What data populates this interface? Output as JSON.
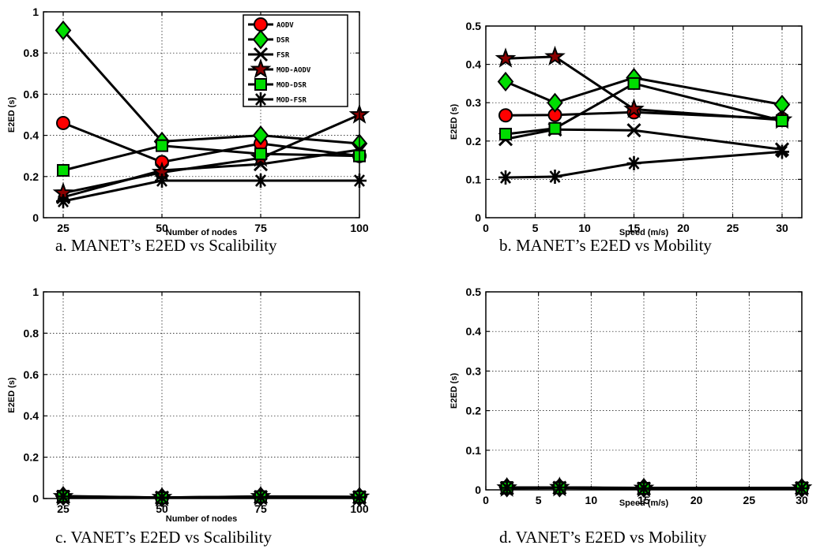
{
  "chart_data": [
    {
      "type": "line",
      "caption": "a.    MANET’s E2ED vs Scalibility",
      "xlabel": "Number of nodes",
      "ylabel": "E2ED (s)",
      "xlim": [
        20,
        100
      ],
      "ylim": [
        0,
        1
      ],
      "xticks": [
        25,
        50,
        75,
        100
      ],
      "yticks": [
        0,
        0.2,
        0.4,
        0.6,
        0.8,
        1
      ],
      "ytick_labels": [
        "0",
        "0.2",
        "0.4",
        "0.6",
        "0.8",
        "1"
      ],
      "grid": true,
      "legend_position": "top-right",
      "x": [
        25,
        50,
        75,
        100
      ],
      "series": [
        {
          "name": "AODV",
          "marker": "circle",
          "color": "#ff0000",
          "values": [
            0.46,
            0.27,
            0.36,
            0.3
          ]
        },
        {
          "name": "DSR",
          "marker": "diamond",
          "color": "#00dd00",
          "values": [
            0.91,
            0.37,
            0.4,
            0.36
          ]
        },
        {
          "name": "FSR",
          "marker": "x",
          "color": "#000000",
          "values": [
            0.1,
            0.23,
            0.26,
            0.33
          ]
        },
        {
          "name": "MOD-AODV",
          "marker": "star",
          "color": "#8b0000",
          "values": [
            0.12,
            0.22,
            0.29,
            0.5
          ]
        },
        {
          "name": "MOD-DSR",
          "marker": "square",
          "color": "#00dd00",
          "values": [
            0.23,
            0.35,
            0.31,
            0.3
          ]
        },
        {
          "name": "MOD-FSR",
          "marker": "asterisk",
          "color": "#000000",
          "values": [
            0.08,
            0.18,
            0.18,
            0.18
          ]
        }
      ]
    },
    {
      "type": "line",
      "caption": "b.    MANET’s E2ED vs Mobility",
      "xlabel": "Speed (m/s)",
      "ylabel": "E2ED (s)",
      "xlim": [
        0,
        32
      ],
      "ylim": [
        0,
        0.5
      ],
      "xticks": [
        0,
        5,
        10,
        15,
        20,
        25,
        30
      ],
      "yticks": [
        0,
        0.1,
        0.2,
        0.3,
        0.4,
        0.5
      ],
      "ytick_labels": [
        "0",
        "0.1",
        "0.2",
        "0.3",
        "0.4",
        "0.5"
      ],
      "grid": true,
      "x": [
        2,
        7,
        15,
        30
      ],
      "series": [
        {
          "name": "AODV",
          "marker": "circle",
          "color": "#ff0000",
          "values": [
            0.267,
            0.268,
            0.275,
            0.258
          ]
        },
        {
          "name": "DSR",
          "marker": "diamond",
          "color": "#00dd00",
          "values": [
            0.355,
            0.3,
            0.365,
            0.295
          ]
        },
        {
          "name": "FSR",
          "marker": "x",
          "color": "#000000",
          "values": [
            0.205,
            0.23,
            0.228,
            0.178
          ]
        },
        {
          "name": "MOD-AODV",
          "marker": "star",
          "color": "#8b0000",
          "values": [
            0.415,
            0.42,
            0.283,
            0.255
          ]
        },
        {
          "name": "MOD-DSR",
          "marker": "square",
          "color": "#00dd00",
          "values": [
            0.218,
            0.233,
            0.35,
            0.253
          ]
        },
        {
          "name": "MOD-FSR",
          "marker": "asterisk",
          "color": "#000000",
          "values": [
            0.105,
            0.107,
            0.142,
            0.172
          ]
        }
      ]
    },
    {
      "type": "line",
      "caption": "c.    VANET’s E2ED vs Scalibility",
      "xlabel": "Number of nodes",
      "ylabel": "E2ED (s)",
      "xlim": [
        20,
        100
      ],
      "ylim": [
        0,
        1
      ],
      "xticks": [
        25,
        50,
        75,
        100
      ],
      "yticks": [
        0,
        0.2,
        0.4,
        0.6,
        0.8,
        1
      ],
      "ytick_labels": [
        "0",
        "0.2",
        "0.4",
        "0.6",
        "0.8",
        "1"
      ],
      "grid": true,
      "x": [
        25,
        50,
        75,
        100
      ],
      "series": [
        {
          "name": "AODV",
          "marker": "circle",
          "color": "#ff0000",
          "values": [
            0.01,
            0.004,
            0.008,
            0.007
          ]
        },
        {
          "name": "DSR",
          "marker": "diamond",
          "color": "#00dd00",
          "values": [
            0.012,
            0.005,
            0.01,
            0.008
          ]
        },
        {
          "name": "FSR",
          "marker": "x",
          "color": "#000000",
          "values": [
            0.008,
            0.004,
            0.007,
            0.006
          ]
        },
        {
          "name": "MOD-AODV",
          "marker": "star",
          "color": "#8b0000",
          "values": [
            0.009,
            0.005,
            0.009,
            0.007
          ]
        },
        {
          "name": "MOD-DSR",
          "marker": "square",
          "color": "#00dd00",
          "values": [
            0.011,
            0.004,
            0.009,
            0.008
          ]
        },
        {
          "name": "MOD-FSR",
          "marker": "asterisk",
          "color": "#000000",
          "values": [
            0.01,
            0.005,
            0.008,
            0.006
          ]
        }
      ]
    },
    {
      "type": "line",
      "caption": "d.    VANET’s E2ED vs Mobility",
      "xlabel": "Speed (m/s)",
      "ylabel": "E2ED (s)",
      "xlim": [
        0,
        30
      ],
      "ylim": [
        0,
        0.5
      ],
      "xticks": [
        0,
        5,
        10,
        15,
        20,
        25,
        30
      ],
      "yticks": [
        0,
        0.1,
        0.2,
        0.3,
        0.4,
        0.5
      ],
      "ytick_labels": [
        "0",
        "0.1",
        "0.2",
        "0.3",
        "0.4",
        "0.5"
      ],
      "grid": true,
      "x": [
        2,
        7,
        15,
        30
      ],
      "series": [
        {
          "name": "AODV",
          "marker": "circle",
          "color": "#ff0000",
          "values": [
            0.005,
            0.006,
            0.004,
            0.005
          ]
        },
        {
          "name": "DSR",
          "marker": "diamond",
          "color": "#00dd00",
          "values": [
            0.006,
            0.006,
            0.005,
            0.005
          ]
        },
        {
          "name": "FSR",
          "marker": "x",
          "color": "#000000",
          "values": [
            0.004,
            0.005,
            0.003,
            0.004
          ]
        },
        {
          "name": "MOD-AODV",
          "marker": "star",
          "color": "#8b0000",
          "values": [
            0.005,
            0.006,
            0.004,
            0.005
          ]
        },
        {
          "name": "MOD-DSR",
          "marker": "square",
          "color": "#00dd00",
          "values": [
            0.006,
            0.005,
            0.004,
            0.005
          ]
        },
        {
          "name": "MOD-FSR",
          "marker": "asterisk",
          "color": "#000000",
          "values": [
            0.005,
            0.006,
            0.004,
            0.004
          ]
        }
      ]
    }
  ]
}
